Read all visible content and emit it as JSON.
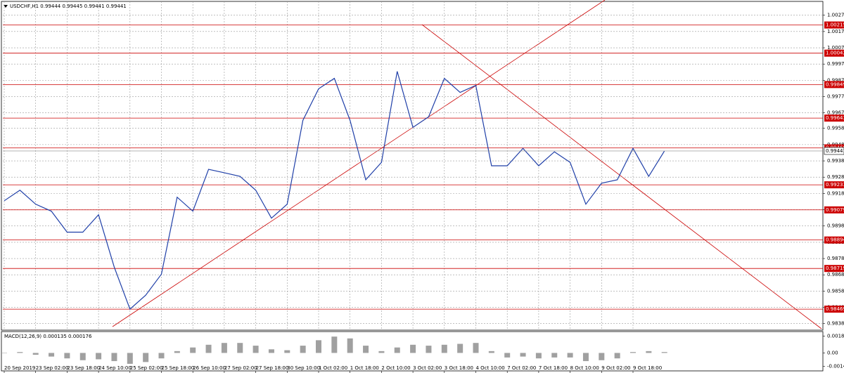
{
  "chart_data": {
    "type": "line",
    "title": "USDCHF,H1  0.99444 0.99445 0.99441 0.99441",
    "categories": [
      "20 Sep 2019",
      null,
      "23 Sep 02:00",
      null,
      "23 Sep 18:00",
      null,
      "24 Sep 10:00",
      null,
      "25 Sep 02:00",
      null,
      "25 Sep 18:00",
      null,
      "26 Sep 10:00",
      null,
      "27 Sep 02:00",
      null,
      "27 Sep 18:00",
      null,
      "30 Sep 10:00",
      null,
      "1 Oct 02:00",
      null,
      "1 Oct 18:00",
      null,
      "2 Oct 10:00",
      null,
      "3 Oct 02:00",
      null,
      "3 Oct 18:00",
      null,
      "4 Oct 10:00",
      null,
      "7 Oct 02:00",
      null,
      "7 Oct 18:00",
      null,
      "8 Oct 10:00",
      null,
      "9 Oct 02:00",
      null,
      "9 Oct 18:00",
      null,
      null
    ],
    "series": [
      {
        "name": "USDCHF,H1",
        "color": "#1f3fa8",
        "values": [
          0.99135,
          0.992,
          0.99114,
          0.99071,
          0.98942,
          0.98942,
          0.99049,
          0.98727,
          0.98469,
          0.98555,
          0.98684,
          0.99157,
          0.99071,
          0.99328,
          0.99307,
          0.99285,
          0.992,
          0.99028,
          0.99114,
          0.99629,
          0.99823,
          0.99887,
          0.99629,
          0.99264,
          0.99371,
          0.9993,
          0.99586,
          0.99651,
          0.99887,
          0.99801,
          0.99844,
          0.9935,
          0.9935,
          0.99457,
          0.9935,
          0.99436,
          0.99371,
          0.99114,
          0.99243,
          0.99264,
          0.99457,
          0.99285,
          0.99441
        ]
      }
    ],
    "ylim": [
      0.9834,
      1.0036
    ],
    "yticks": [
      1.00275,
      1.00175,
      1.00075,
      0.99975,
      0.99875,
      0.99775,
      0.99675,
      {
        "value": 0.9958,
        "label": "0.99580"
      },
      {
        "value": 0.9948,
        "label": "0.99480"
      },
      {
        "value": 0.9938,
        "label": "0.99380"
      },
      {
        "value": 0.9928,
        "label": "0.99280"
      },
      {
        "value": 0.9918,
        "label": "0.99180"
      },
      {
        "value": 0.9908,
        "label": "0.99080"
      },
      {
        "value": 0.9898,
        "label": "0.98980"
      },
      {
        "value": 0.9888,
        "label": "0.98880"
      },
      {
        "value": 0.9878,
        "label": "0.98780"
      },
      {
        "value": 0.9868,
        "label": "0.98680"
      },
      {
        "value": 0.9858,
        "label": "0.98580"
      },
      {
        "value": 0.9848,
        "label": "0.98480"
      },
      {
        "value": 0.9838,
        "label": "0.98380"
      }
    ],
    "levels": [
      1.00215,
      1.00042,
      0.99849,
      0.99643,
      {
        "value": 0.9946,
        "label": "0.99460"
      },
      0.99233,
      0.99079,
      0.98894,
      0.98719,
      0.98469
    ],
    "level_color": "#cc0000",
    "last_price": 0.99441,
    "grid": true,
    "macd": {
      "title": "MACD(12,26,9) 0.000135 0.000176",
      "color": "#a0a0a0",
      "values": [
        0,
        0.0001,
        -0.0002,
        -0.0004,
        -0.0006,
        -0.0008,
        -0.0007,
        -0.0009,
        -0.0012,
        -0.001,
        -0.0006,
        0.0002,
        0.0006,
        0.0009,
        0.0011,
        0.0011,
        0.0008,
        0.0004,
        0.0003,
        0.0008,
        0.0014,
        0.0018,
        0.0016,
        0.0008,
        0.0002,
        0.0006,
        0.0009,
        0.0008,
        0.0009,
        0.001,
        0.0011,
        0.0002,
        -0.0005,
        -0.0004,
        -0.0006,
        -0.0005,
        -0.0005,
        -0.0009,
        -0.0008,
        -0.0006,
        0.0001,
        0.0002,
        0.0001
      ],
      "ylim": [
        -0.0019,
        0.0022
      ],
      "yticks": [
        0.001842,
        {
          "value": 0,
          "label": "0.00"
        },
        -0.00149
      ]
    }
  }
}
